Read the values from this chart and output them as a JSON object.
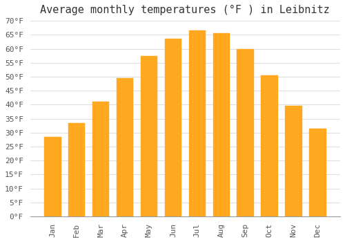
{
  "title": "Average monthly temperatures (°F ) in Leibnitz",
  "months": [
    "Jan",
    "Feb",
    "Mar",
    "Apr",
    "May",
    "Jun",
    "Jul",
    "Aug",
    "Sep",
    "Oct",
    "Nov",
    "Dec"
  ],
  "values": [
    28.5,
    33.5,
    41.0,
    49.5,
    57.5,
    63.5,
    66.5,
    65.5,
    60.0,
    50.5,
    39.5,
    31.5
  ],
  "bar_color": "#FFA820",
  "bar_edge_color": "#FFA820",
  "background_color": "#ffffff",
  "plot_bg_color": "#ffffff",
  "ylim": [
    0,
    70
  ],
  "ytick_step": 5,
  "title_fontsize": 11,
  "tick_fontsize": 8,
  "grid_color": "#dddddd",
  "spine_color": "#999999",
  "text_color": "#555555"
}
